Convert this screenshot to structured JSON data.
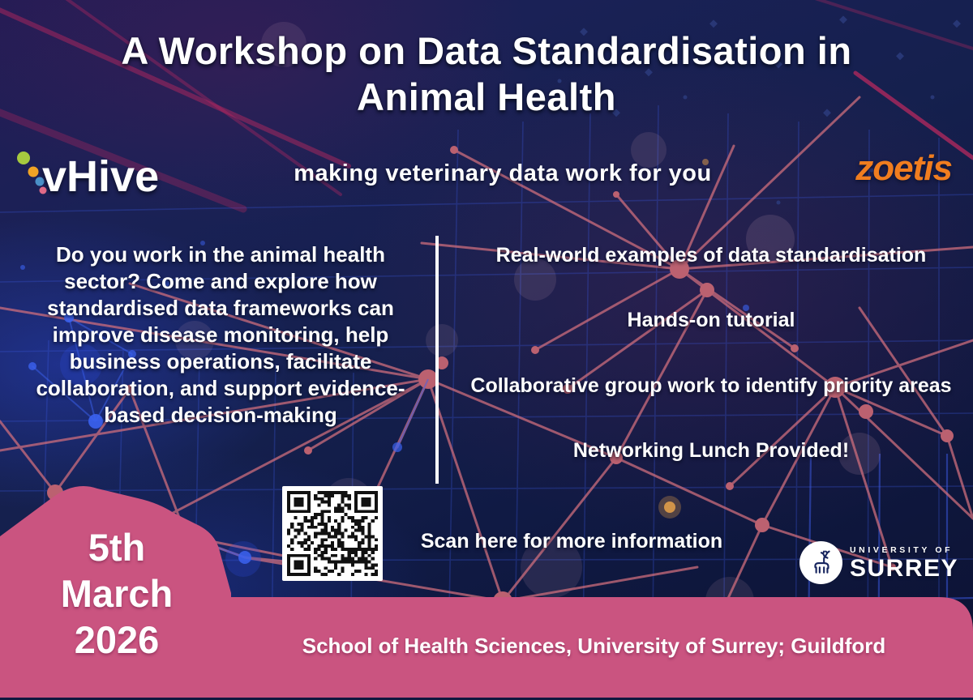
{
  "title": {
    "line1": "A Workshop on Data Standardisation in",
    "line2": "Animal Health"
  },
  "brands": {
    "vhive": "vHive",
    "zoetis": "zoetis",
    "tagline": "making veterinary data work for you"
  },
  "intro": "Do you work in the animal health sector? Come and explore how standardised data frameworks can improve disease monitoring, help business operations, facilitate collaboration, and support evidence-based decision-making",
  "highlights": [
    "Real-world examples of data standardisation",
    "Hands-on tutorial",
    "Collaborative group work to identify priority areas",
    "Networking Lunch Provided!"
  ],
  "qr_caption": "Scan here for more information",
  "event_date": {
    "day": "5th",
    "month": "March",
    "year": "2026"
  },
  "surrey_logo": {
    "university_of": "UNIVERSITY OF",
    "surrey": "SURREY"
  },
  "footer": "School of Health Sciences, University of Surrey; Guildford",
  "colors": {
    "background_navy": "#131b45",
    "pink": "#ca5480",
    "zoetis_orange": "#f07d1f",
    "mesh_rose": "#cd6d7c",
    "grid_blue": "#3d5ce8",
    "node_blue": "#3b62f0",
    "vhive_dot_green": "#a6c93f",
    "vhive_dot_orange": "#f0a325",
    "vhive_dot_blue": "#4a90c8",
    "vhive_dot_pink": "#e06a88"
  }
}
